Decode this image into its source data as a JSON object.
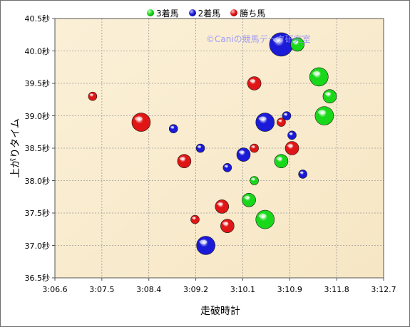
{
  "chart_data": {
    "type": "scatter",
    "xlabel": "走破時計",
    "ylabel": "上がりタイム",
    "watermark": "©Caniの競馬データ研究室",
    "x_ticks": [
      "3:06.6",
      "3:07.5",
      "3:08.4",
      "3:09.2",
      "3:10.1",
      "3:10.9",
      "3:11.8",
      "3:12.7"
    ],
    "y_ticks": [
      "36.5秒",
      "37.0秒",
      "37.5秒",
      "38.0秒",
      "38.5秒",
      "39.0秒",
      "39.5秒",
      "40.0秒",
      "40.5秒"
    ],
    "xlim": [
      "3:06.6",
      "3:12.7"
    ],
    "ylim": [
      36.5,
      40.5
    ],
    "grid": true,
    "legend_position": "top",
    "series": [
      {
        "name": "3着馬",
        "color": "#19d819",
        "points": [
          {
            "x": "3:10.3",
            "y": 38.0,
            "size": 1
          },
          {
            "x": "3:10.2",
            "y": 37.7,
            "size": 2
          },
          {
            "x": "3:10.5",
            "y": 37.4,
            "size": 3
          },
          {
            "x": "3:10.8",
            "y": 38.3,
            "size": 2
          },
          {
            "x": "3:11.1",
            "y": 40.1,
            "size": 2
          },
          {
            "x": "3:11.5",
            "y": 39.6,
            "size": 3
          },
          {
            "x": "3:11.7",
            "y": 39.3,
            "size": 2
          },
          {
            "x": "3:11.6",
            "y": 39.0,
            "size": 3
          }
        ]
      },
      {
        "name": "2着馬",
        "color": "#1a1ad8",
        "points": [
          {
            "x": "3:10.8",
            "y": 40.1,
            "size": 4
          },
          {
            "x": "3:10.5",
            "y": 38.9,
            "size": 3
          },
          {
            "x": "3:10.9",
            "y": 39.0,
            "size": 1
          },
          {
            "x": "3:11.0",
            "y": 38.7,
            "size": 1
          },
          {
            "x": "3:08.8",
            "y": 38.8,
            "size": 1
          },
          {
            "x": "3:09.3",
            "y": 38.5,
            "size": 1
          },
          {
            "x": "3:10.1",
            "y": 38.4,
            "size": 2
          },
          {
            "x": "3:09.8",
            "y": 38.2,
            "size": 1
          },
          {
            "x": "3:11.2",
            "y": 38.1,
            "size": 1
          },
          {
            "x": "3:09.4",
            "y": 37.0,
            "size": 3
          }
        ]
      },
      {
        "name": "勝ち馬",
        "color": "#e01515",
        "points": [
          {
            "x": "3:07.3",
            "y": 39.3,
            "size": 1
          },
          {
            "x": "3:08.2",
            "y": 38.9,
            "size": 3
          },
          {
            "x": "3:09.0",
            "y": 38.3,
            "size": 2
          },
          {
            "x": "3:09.2",
            "y": 37.4,
            "size": 1
          },
          {
            "x": "3:09.7",
            "y": 37.6,
            "size": 2
          },
          {
            "x": "3:09.8",
            "y": 37.3,
            "size": 2
          },
          {
            "x": "3:10.3",
            "y": 39.5,
            "size": 2
          },
          {
            "x": "3:10.3",
            "y": 38.5,
            "size": 1
          },
          {
            "x": "3:10.8",
            "y": 38.9,
            "size": 1
          },
          {
            "x": "3:11.0",
            "y": 38.5,
            "size": 2
          }
        ]
      }
    ]
  }
}
